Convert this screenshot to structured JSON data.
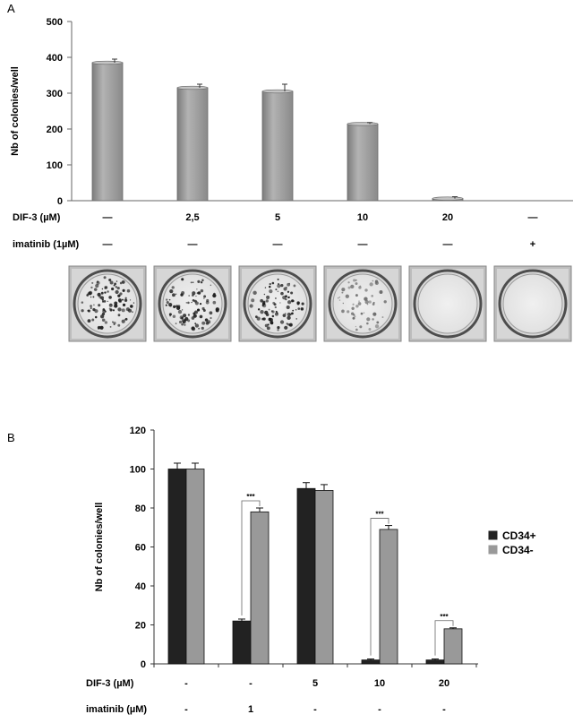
{
  "chart_data": [
    {
      "panel": "A",
      "type": "bar",
      "ylabel": "Nb of colonies/well",
      "ylim": [
        0,
        500
      ],
      "yticks": [
        0,
        100,
        200,
        300,
        400,
        500
      ],
      "values": [
        385,
        315,
        305,
        214,
        6,
        0
      ],
      "errors": [
        10,
        10,
        20,
        4,
        5,
        0
      ],
      "bar_color": "#9e9e9e",
      "rows": [
        {
          "label": "DIF-3 (µM)",
          "cells": [
            "—",
            "2,5",
            "5",
            "10",
            "20",
            "—"
          ]
        },
        {
          "label": "imatinib (1µM)",
          "cells": [
            "—",
            "—",
            "—",
            "—",
            "—",
            "+"
          ]
        }
      ],
      "wells": [
        {
          "density": 0.9,
          "color": "dark"
        },
        {
          "density": 0.8,
          "color": "dark"
        },
        {
          "density": 0.8,
          "color": "dark"
        },
        {
          "density": 0.5,
          "color": "light"
        },
        {
          "density": 0,
          "color": "none"
        },
        {
          "density": 0,
          "color": "none"
        }
      ]
    },
    {
      "panel": "B",
      "type": "bar",
      "ylabel": "Nb of colonies/well",
      "ylim": [
        0,
        120
      ],
      "yticks": [
        0,
        20,
        40,
        60,
        80,
        100,
        120
      ],
      "series": [
        {
          "name": "CD34+",
          "color": "#222222",
          "values": [
            100,
            22,
            90,
            2,
            2
          ],
          "errors": [
            3,
            1,
            3,
            0.5,
            0.5
          ]
        },
        {
          "name": "CD34-",
          "color": "#999999",
          "values": [
            100,
            78,
            89,
            69,
            18
          ],
          "errors": [
            3,
            2,
            3,
            2,
            0.5
          ]
        }
      ],
      "significance": [
        {
          "group": 1,
          "label": "***"
        },
        {
          "group": 3,
          "label": "***"
        },
        {
          "group": 4,
          "label": "***"
        }
      ],
      "legend_position": "right",
      "rows": [
        {
          "label": "DIF-3 (µM)",
          "cells": [
            "-",
            "-",
            "5",
            "10",
            "20"
          ]
        },
        {
          "label": "imatinib (µM)",
          "cells": [
            "-",
            "1",
            "-",
            "-",
            "-"
          ]
        }
      ]
    }
  ]
}
